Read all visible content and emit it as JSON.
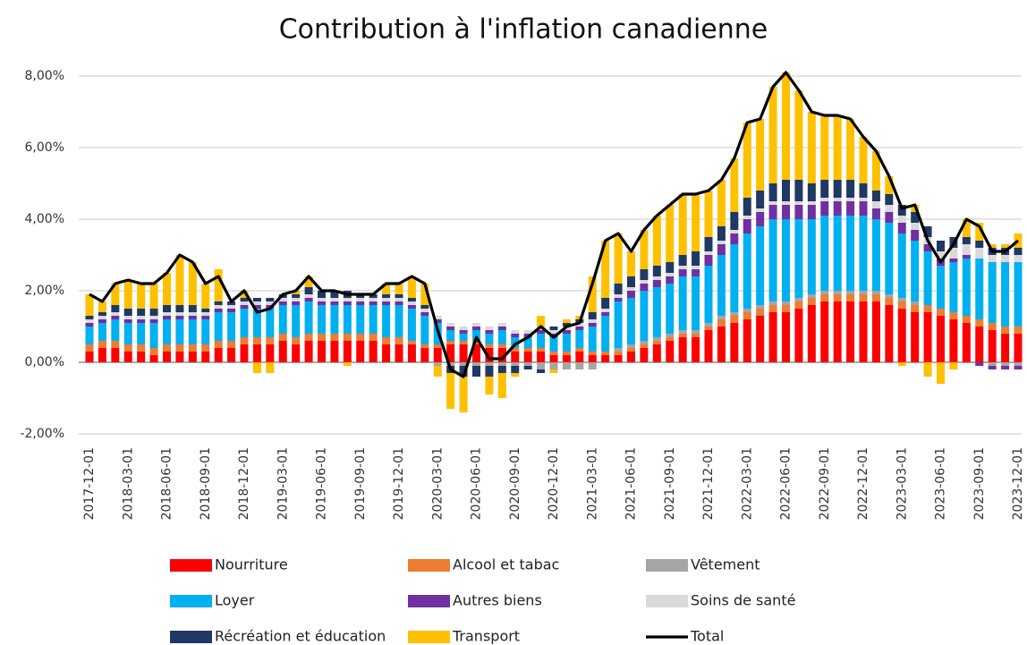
{
  "chart_data": {
    "type": "stacked-bar-line",
    "title": "Contribution à l'inflation canadienne",
    "categories": [
      "2017-12-01",
      null,
      null,
      "2018-03-01",
      null,
      null,
      "2018-06-01",
      null,
      null,
      "2018-09-01",
      null,
      null,
      "2018-12-01",
      null,
      null,
      "2019-03-01",
      null,
      null,
      "2019-06-01",
      null,
      null,
      "2019-09-01",
      null,
      null,
      "2019-12-01",
      null,
      null,
      "2020-03-01",
      null,
      null,
      "2020-06-01",
      null,
      null,
      "2020-09-01",
      null,
      null,
      "2020-12-01",
      null,
      null,
      "2021-03-01",
      null,
      null,
      "2021-06-01",
      null,
      null,
      "2021-09-01",
      null,
      null,
      "2021-12-01",
      null,
      null,
      "2022-03-01",
      null,
      null,
      "2022-06-01",
      null,
      null,
      "2022-09-01",
      null,
      null,
      "2022-12-01",
      null,
      null,
      "2023-03-01",
      null,
      null,
      "2023-06-01",
      null,
      null,
      "2023-09-01",
      null,
      null,
      "2023-12-01"
    ],
    "series": [
      {
        "name": "Nourriture",
        "color": "#ff0000",
        "values": [
          0.3,
          0.4,
          0.4,
          0.3,
          0.3,
          0.2,
          0.3,
          0.3,
          0.3,
          0.3,
          0.4,
          0.4,
          0.5,
          0.5,
          0.5,
          0.6,
          0.5,
          0.6,
          0.6,
          0.6,
          0.6,
          0.6,
          0.6,
          0.5,
          0.5,
          0.5,
          0.4,
          0.4,
          0.5,
          0.5,
          0.5,
          0.4,
          0.4,
          0.3,
          0.3,
          0.3,
          0.2,
          0.2,
          0.3,
          0.2,
          0.2,
          0.2,
          0.3,
          0.4,
          0.5,
          0.6,
          0.7,
          0.7,
          0.9,
          1.0,
          1.1,
          1.2,
          1.3,
          1.4,
          1.4,
          1.5,
          1.6,
          1.7,
          1.7,
          1.7,
          1.7,
          1.7,
          1.6,
          1.5,
          1.4,
          1.4,
          1.3,
          1.2,
          1.1,
          1.0,
          0.9,
          0.8,
          0.8
        ]
      },
      {
        "name": "Alcool et tabac",
        "color": "#ed7d31",
        "values": [
          0.2,
          0.2,
          0.2,
          0.2,
          0.2,
          0.2,
          0.2,
          0.2,
          0.2,
          0.2,
          0.2,
          0.2,
          0.2,
          0.2,
          0.2,
          0.2,
          0.2,
          0.2,
          0.2,
          0.2,
          0.2,
          0.2,
          0.2,
          0.2,
          0.2,
          0.1,
          0.1,
          0.1,
          0.1,
          0.1,
          0.1,
          0.1,
          0.1,
          0.1,
          0.1,
          0.1,
          0.1,
          0.1,
          0.1,
          0.1,
          0.1,
          0.1,
          0.1,
          0.1,
          0.1,
          0.1,
          0.1,
          0.1,
          0.1,
          0.2,
          0.2,
          0.2,
          0.2,
          0.2,
          0.2,
          0.2,
          0.2,
          0.2,
          0.2,
          0.2,
          0.2,
          0.2,
          0.2,
          0.2,
          0.2,
          0.2,
          0.2,
          0.2,
          0.2,
          0.2,
          0.2,
          0.2,
          0.2
        ]
      },
      {
        "name": "Vêtement",
        "color": "#a5a5a5",
        "values": [
          0,
          0,
          0,
          0,
          0,
          0,
          0,
          0,
          0,
          0,
          0,
          0,
          0,
          0,
          0,
          0,
          0,
          0,
          0,
          0,
          0,
          0,
          0,
          0,
          0,
          0,
          0,
          -0.1,
          -0.1,
          -0.1,
          -0.1,
          -0.1,
          -0.1,
          -0.1,
          -0.1,
          -0.2,
          -0.2,
          -0.2,
          -0.2,
          -0.2,
          0,
          0.1,
          0.1,
          0.1,
          0.1,
          0.1,
          0.1,
          0.1,
          0.1,
          0.1,
          0.1,
          0.1,
          0.1,
          0.1,
          0.1,
          0.1,
          0.1,
          0.1,
          0.1,
          0.1,
          0.1,
          0.1,
          0.1,
          0.1,
          0.1,
          0,
          0,
          0,
          0,
          0,
          -0.1,
          -0.1,
          -0.1
        ]
      },
      {
        "name": "Loyer",
        "color": "#00b0f0",
        "values": [
          0.5,
          0.5,
          0.6,
          0.6,
          0.6,
          0.7,
          0.7,
          0.7,
          0.7,
          0.7,
          0.8,
          0.8,
          0.8,
          0.8,
          0.8,
          0.8,
          0.9,
          0.9,
          0.8,
          0.8,
          0.8,
          0.8,
          0.8,
          0.9,
          0.9,
          0.9,
          0.8,
          0.6,
          0.3,
          0.2,
          0.3,
          0.3,
          0.4,
          0.3,
          0.3,
          0.4,
          0.4,
          0.5,
          0.5,
          0.7,
          1.0,
          1.3,
          1.3,
          1.4,
          1.4,
          1.4,
          1.5,
          1.5,
          1.6,
          1.7,
          1.9,
          2.1,
          2.2,
          2.3,
          2.3,
          2.2,
          2.1,
          2.1,
          2.1,
          2.1,
          2.1,
          2.0,
          2.0,
          1.8,
          1.7,
          1.5,
          1.2,
          1.4,
          1.6,
          1.7,
          1.7,
          1.8,
          1.8
        ]
      },
      {
        "name": "Autres biens",
        "color": "#7030a0",
        "values": [
          0.1,
          0.1,
          0.1,
          0.1,
          0.1,
          0.1,
          0.1,
          0.1,
          0.1,
          0.1,
          0.1,
          0.1,
          0.1,
          0.1,
          0.1,
          0.1,
          0.1,
          0.1,
          0.1,
          0.1,
          0.1,
          0.1,
          0.1,
          0.1,
          0.1,
          0.1,
          0.1,
          0.1,
          0.1,
          0.1,
          0.1,
          0.1,
          0.1,
          0.1,
          0.1,
          0.1,
          0.1,
          0.1,
          0.1,
          0.1,
          0.1,
          0.1,
          0.2,
          0.2,
          0.2,
          0.2,
          0.2,
          0.2,
          0.3,
          0.3,
          0.3,
          0.4,
          0.4,
          0.4,
          0.4,
          0.4,
          0.4,
          0.4,
          0.4,
          0.4,
          0.4,
          0.3,
          0.3,
          0.3,
          0.3,
          0.2,
          0.2,
          0.1,
          0.1,
          -0.1,
          -0.1,
          -0.1,
          -0.1
        ]
      },
      {
        "name": "Soins de santé",
        "color": "#d9d9d9",
        "values": [
          0.1,
          0.1,
          0.1,
          0.1,
          0.1,
          0.1,
          0.1,
          0.1,
          0.1,
          0.1,
          0.1,
          0.1,
          0.1,
          0.1,
          0.1,
          0.1,
          0.1,
          0.1,
          0.1,
          0.1,
          0.1,
          0.1,
          0.1,
          0.1,
          0.1,
          0.1,
          0.1,
          0.1,
          0.1,
          0.1,
          0.1,
          0.1,
          0.1,
          0.1,
          0.1,
          0.1,
          0.1,
          0.1,
          0.1,
          0.1,
          0.1,
          0.1,
          0.1,
          0.1,
          0.1,
          0.1,
          0.1,
          0.1,
          0.1,
          0.1,
          0.1,
          0.1,
          0.1,
          0.1,
          0.1,
          0.1,
          0.1,
          0.1,
          0.1,
          0.1,
          0.1,
          0.2,
          0.2,
          0.2,
          0.2,
          0.2,
          0.2,
          0.3,
          0.3,
          0.3,
          0.2,
          0.2,
          0.2
        ]
      },
      {
        "name": "Récréation et éducation",
        "color": "#203864",
        "values": [
          0.1,
          0.1,
          0.2,
          0.2,
          0.2,
          0.2,
          0.2,
          0.2,
          0.2,
          0.1,
          0.1,
          0.1,
          0.1,
          0.1,
          0.1,
          0.1,
          0.1,
          0.2,
          0.2,
          0.2,
          0.2,
          0.1,
          0.1,
          0.1,
          0.1,
          0.1,
          0.1,
          0.0,
          -0.2,
          -0.3,
          -0.3,
          -0.3,
          -0.2,
          -0.2,
          -0.1,
          -0.1,
          0.1,
          0.1,
          0.1,
          0.2,
          0.3,
          0.3,
          0.3,
          0.3,
          0.3,
          0.3,
          0.3,
          0.4,
          0.4,
          0.4,
          0.5,
          0.5,
          0.5,
          0.5,
          0.6,
          0.6,
          0.5,
          0.5,
          0.5,
          0.5,
          0.4,
          0.3,
          0.3,
          0.3,
          0.3,
          0.3,
          0.3,
          0.3,
          0.2,
          0.2,
          0.2,
          0.2,
          0.2
        ]
      },
      {
        "name": "Transport",
        "color": "#ffc000",
        "values": [
          0.6,
          0.3,
          0.6,
          0.8,
          0.7,
          0.7,
          0.9,
          1.4,
          1.2,
          0.7,
          0.9,
          0.0,
          0.2,
          -0.3,
          -0.3,
          0.0,
          0.1,
          0.3,
          0.0,
          0.0,
          -0.1,
          0.0,
          0.0,
          0.3,
          0.3,
          0.6,
          0.6,
          -0.3,
          -1.0,
          -1.0,
          0.0,
          -0.5,
          -0.7,
          -0.1,
          0.0,
          0.3,
          -0.1,
          0.1,
          0.1,
          1.0,
          1.6,
          1.4,
          0.7,
          1.1,
          1.4,
          1.6,
          1.7,
          1.6,
          1.3,
          1.3,
          1.5,
          2.1,
          2.0,
          2.7,
          3.0,
          2.5,
          2.0,
          1.8,
          1.8,
          1.7,
          1.3,
          1.1,
          0.5,
          -0.1,
          0.2,
          -0.4,
          -0.6,
          -0.2,
          0.5,
          0.5,
          0.1,
          0.1,
          0.4
        ]
      }
    ],
    "total": {
      "name": "Total",
      "color": "#000000",
      "values": [
        1.9,
        1.7,
        2.2,
        2.3,
        2.2,
        2.2,
        2.5,
        3.0,
        2.8,
        2.2,
        2.4,
        1.7,
        2.0,
        1.4,
        1.5,
        1.9,
        2.0,
        2.4,
        2.0,
        2.0,
        1.9,
        1.9,
        1.9,
        2.2,
        2.2,
        2.4,
        2.2,
        0.9,
        -0.2,
        -0.4,
        0.7,
        0.1,
        0.1,
        0.5,
        0.7,
        1.0,
        0.7,
        1.0,
        1.1,
        2.2,
        3.4,
        3.6,
        3.1,
        3.7,
        4.1,
        4.4,
        4.7,
        4.7,
        4.8,
        5.1,
        5.7,
        6.7,
        6.8,
        7.7,
        8.1,
        7.6,
        7.0,
        6.9,
        6.9,
        6.8,
        6.3,
        5.9,
        5.2,
        4.3,
        4.4,
        3.4,
        2.8,
        3.3,
        4.0,
        3.8,
        3.1,
        3.1,
        3.4
      ]
    },
    "ylim": [
      -2,
      8
    ],
    "yticks": [
      {
        "value": -2,
        "label": "-2,00%"
      },
      {
        "value": 0,
        "label": "0,00%"
      },
      {
        "value": 2,
        "label": "2,00%"
      },
      {
        "value": 4,
        "label": "4,00%"
      },
      {
        "value": 6,
        "label": "6,00%"
      },
      {
        "value": 8,
        "label": "8,00%"
      }
    ],
    "grid": true
  }
}
